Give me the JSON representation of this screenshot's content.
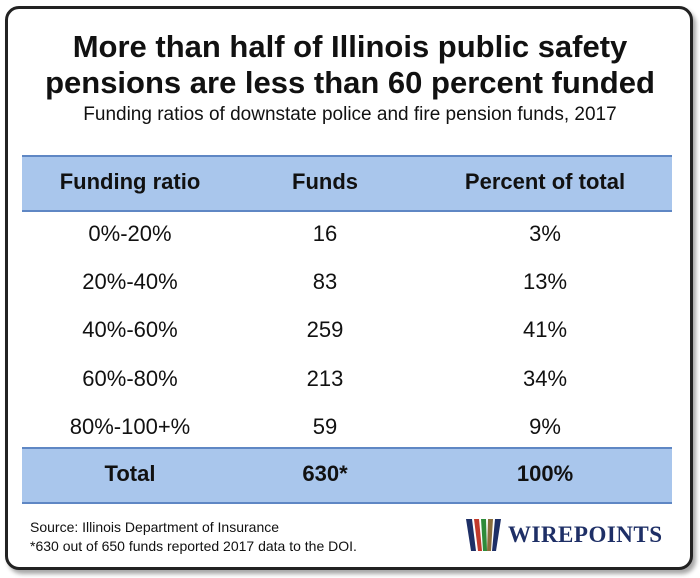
{
  "chart_data": {
    "type": "table",
    "title_line1": "More than half of Illinois public safety",
    "title_line2": "pensions are less than 60 percent funded",
    "subtitle": "Funding ratios of downstate police and fire pension funds, 2017",
    "columns": [
      "Funding ratio",
      "Funds",
      "Percent of total"
    ],
    "rows": [
      [
        "0%-20%",
        "16",
        "3%"
      ],
      [
        "20%-40%",
        "83",
        "13%"
      ],
      [
        "40%-60%",
        "259",
        "41%"
      ],
      [
        "60%-80%",
        "213",
        "34%"
      ],
      [
        "80%-100+%",
        "59",
        "9%"
      ]
    ],
    "total": [
      "Total",
      "630*",
      "100%"
    ]
  },
  "footer": {
    "source": "Source: Illinois Department of Insurance",
    "note": "*630 out of 650 funds reported 2017 data to the DOI."
  },
  "logo": {
    "text": "WIREPOINTS",
    "colors": [
      "#1e2f66",
      "#c23a2b",
      "#2e8b3a",
      "#8a6d3b"
    ]
  }
}
